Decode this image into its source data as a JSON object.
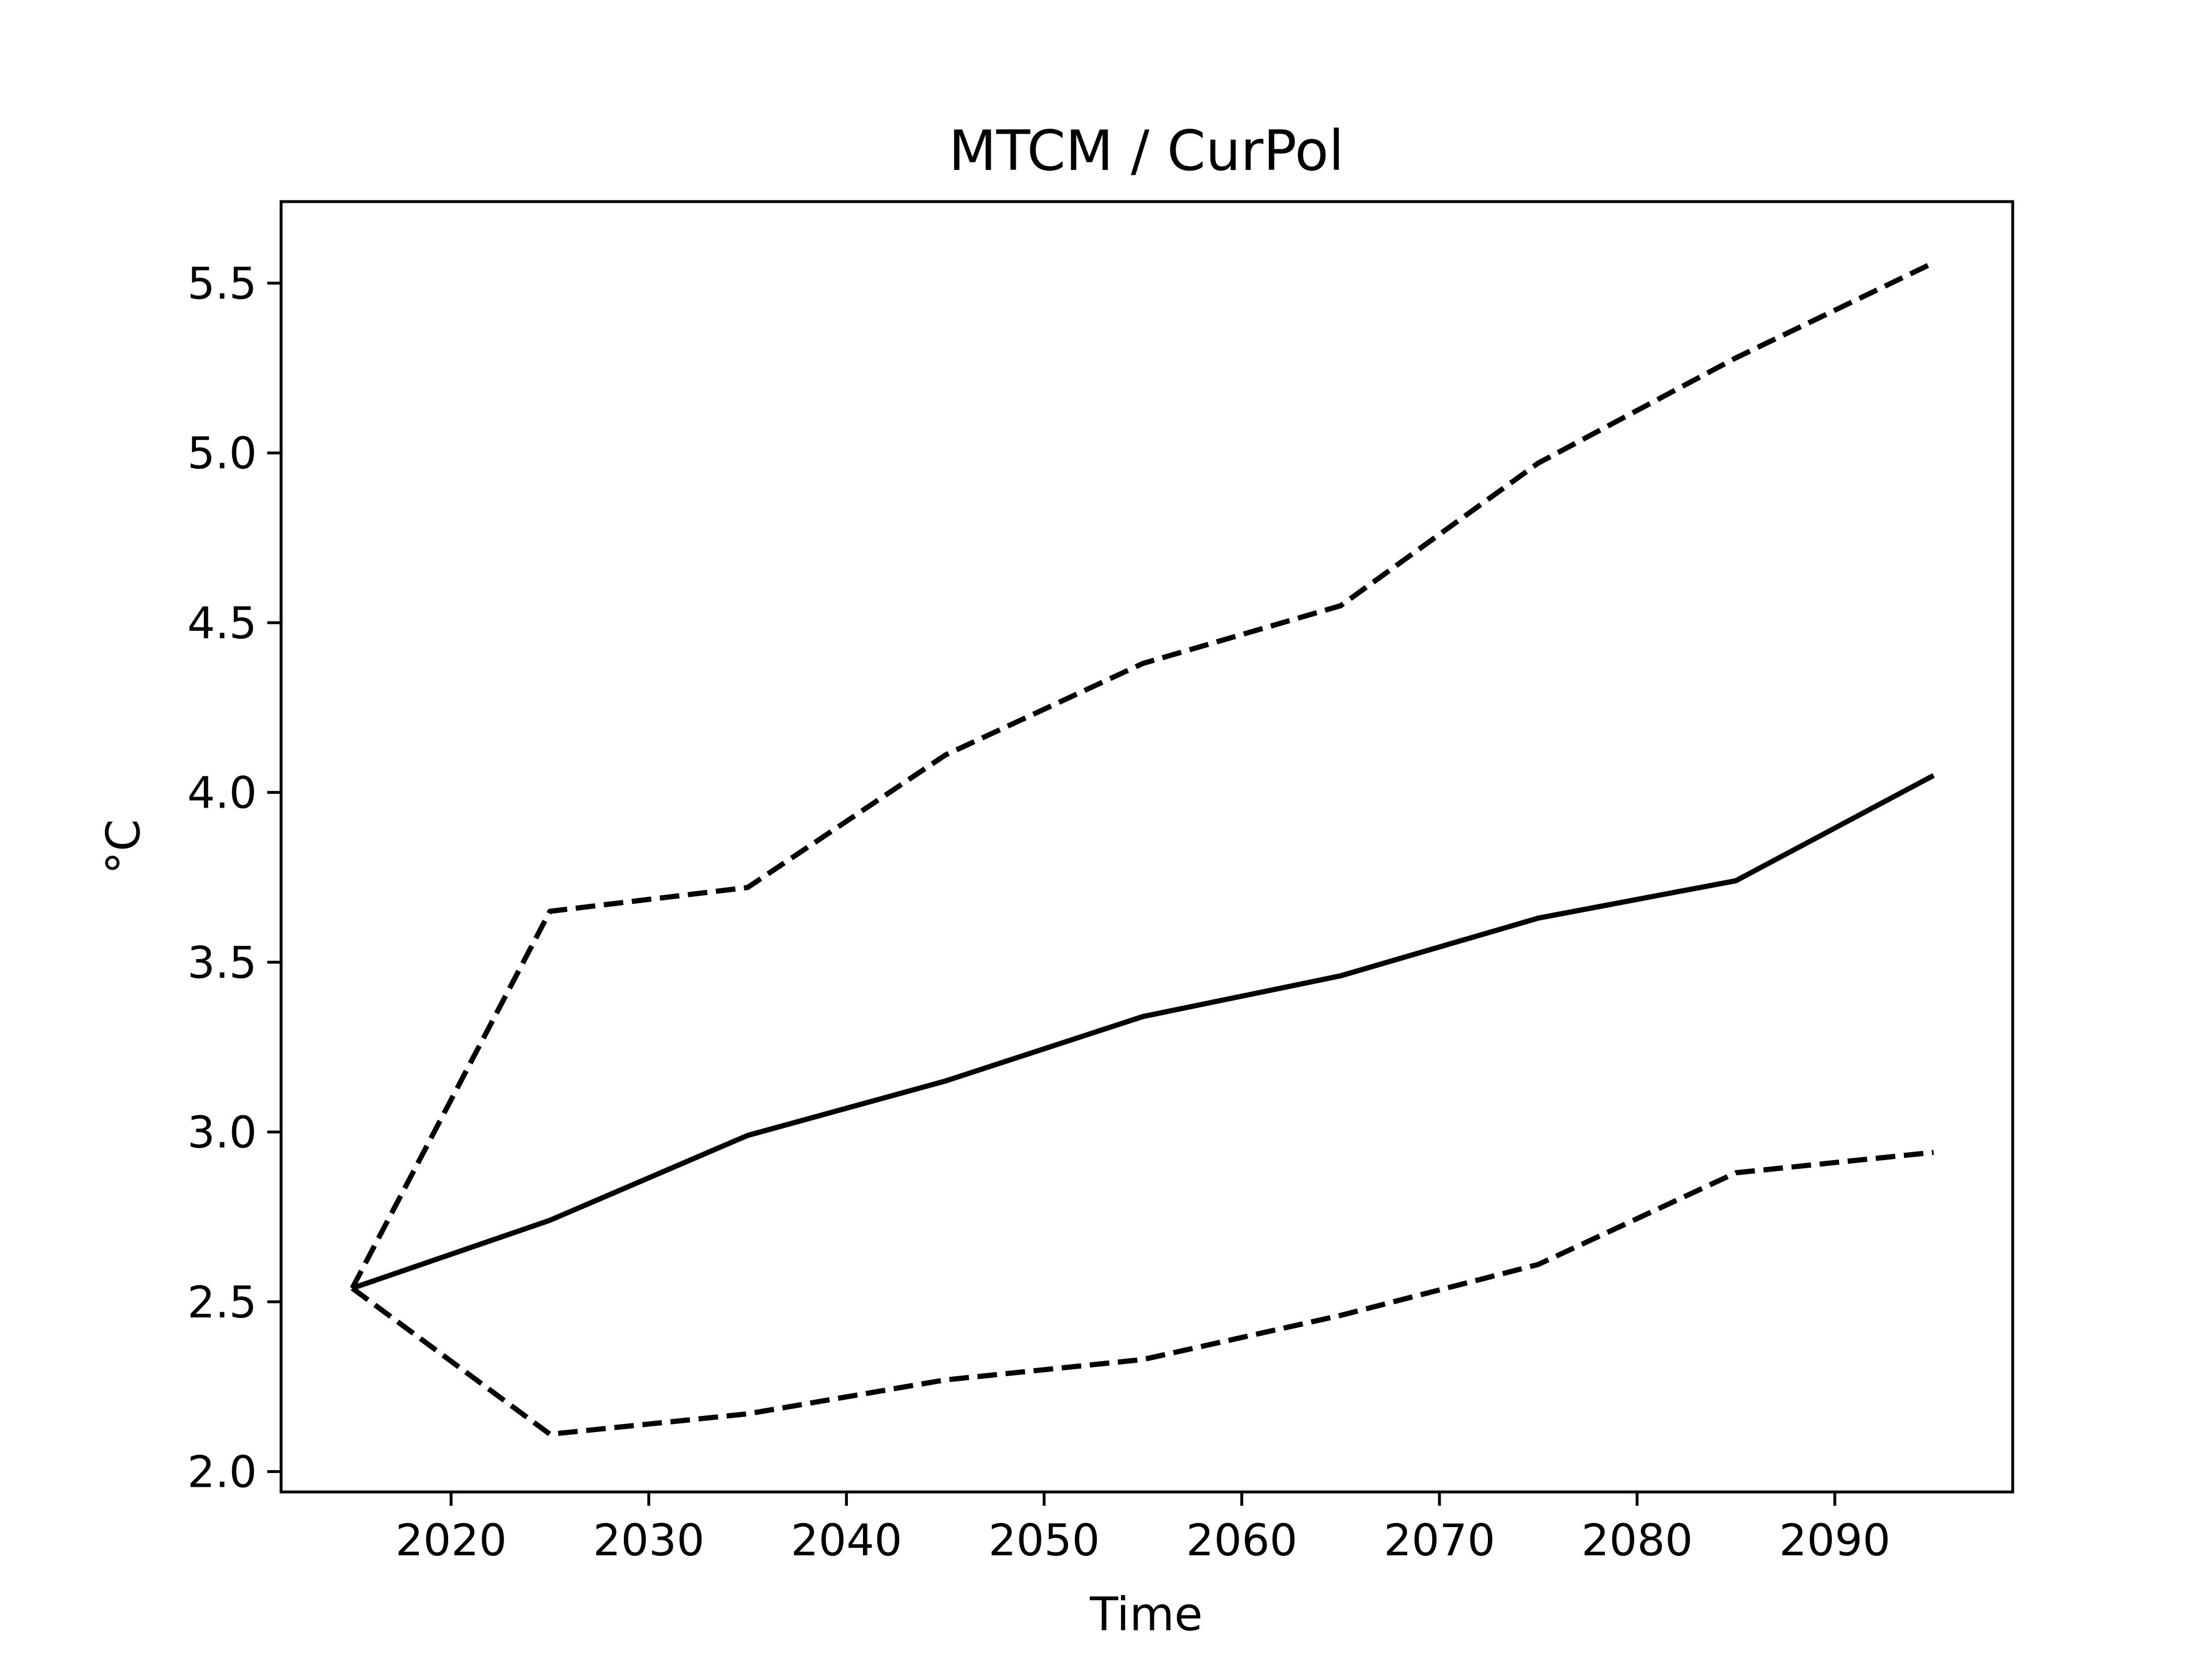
{
  "chart_data": {
    "type": "line",
    "title": "MTCM / CurPol",
    "xlabel": "Time",
    "ylabel": "°C",
    "xlim": [
      2011.4,
      2099
    ],
    "ylim": [
      1.94,
      5.74
    ],
    "xticks": [
      2020,
      2030,
      2040,
      2050,
      2060,
      2070,
      2080,
      2090
    ],
    "yticks": [
      2.0,
      2.5,
      3.0,
      3.5,
      4.0,
      4.5,
      5.0,
      5.5
    ],
    "ytick_labels": [
      "2.0",
      "2.5",
      "3.0",
      "3.5",
      "4.0",
      "4.5",
      "5.0",
      "5.5"
    ],
    "grid": false,
    "x": [
      2015,
      2025,
      2035,
      2045,
      2055,
      2065,
      2075,
      2085,
      2095
    ],
    "series": [
      {
        "values": [
          2.54,
          3.65,
          3.72,
          4.11,
          4.38,
          4.55,
          4.97,
          5.28,
          5.56
        ],
        "color": "#000000",
        "style": "dashed"
      },
      {
        "values": [
          2.54,
          2.74,
          2.99,
          3.15,
          3.34,
          3.46,
          3.63,
          3.74,
          4.05
        ],
        "color": "#000000",
        "style": "solid"
      },
      {
        "values": [
          2.54,
          2.11,
          2.17,
          2.27,
          2.33,
          2.46,
          2.61,
          2.88,
          2.94
        ],
        "color": "#000000",
        "style": "dashed"
      }
    ]
  }
}
